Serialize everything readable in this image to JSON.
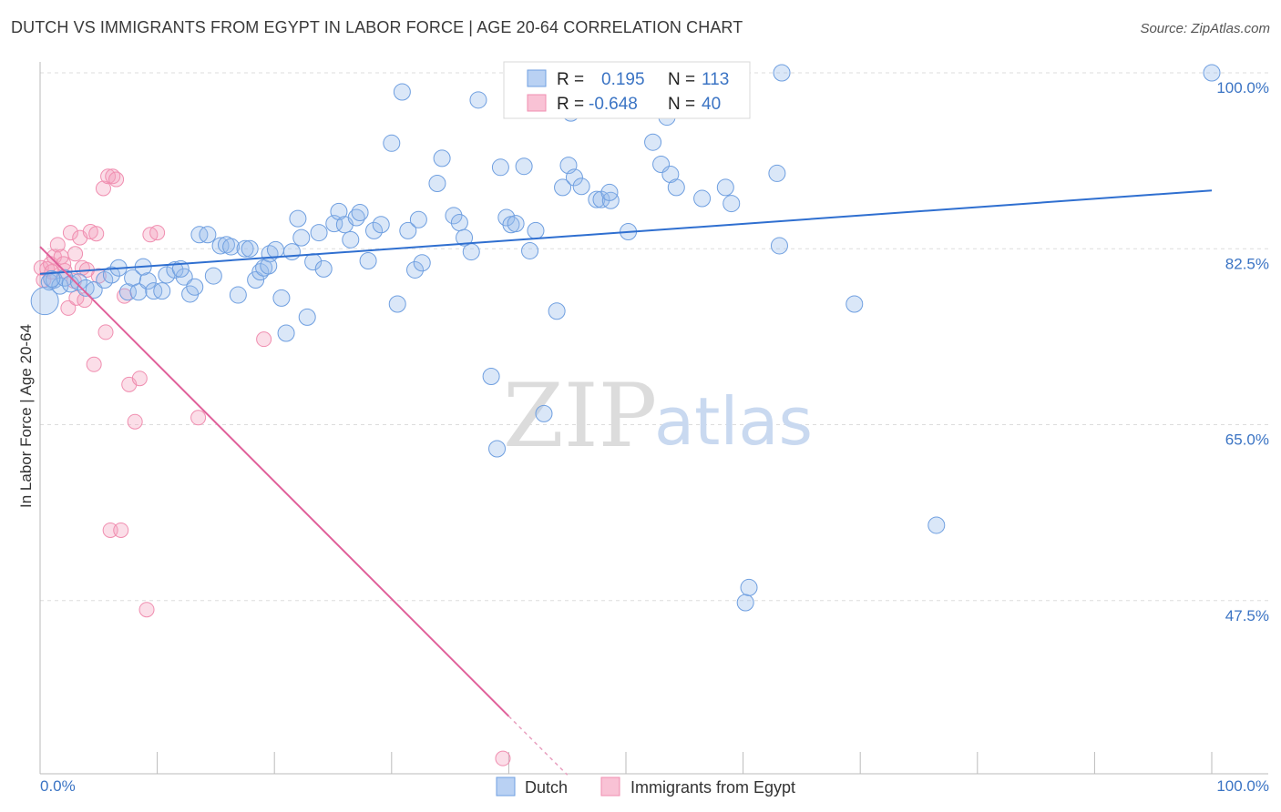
{
  "title": "DUTCH VS IMMIGRANTS FROM EGYPT IN LABOR FORCE | AGE 20-64 CORRELATION CHART",
  "source": "Source: ZipAtlas.com",
  "watermark": {
    "zip": "ZIP",
    "atlas": "atlas"
  },
  "colors": {
    "dutch": "#6f9fe0",
    "egypt": "#f08eb0",
    "dutch_line": "#2f6fd0",
    "egypt_line": "#e0609a",
    "tick": "#3b74c4"
  },
  "legend": {
    "r_label": "R =",
    "n_label": "N =",
    "dutch_r": "0.195",
    "dutch_n": "113",
    "egypt_r": "-0.648",
    "egypt_n": "40"
  },
  "chart_data": {
    "type": "scatter",
    "title": "DUTCH VS IMMIGRANTS FROM EGYPT IN LABOR FORCE | AGE 20-64 CORRELATION CHART",
    "xlabel": "",
    "ylabel": "In Labor Force | Age 20-64",
    "xlim": [
      0,
      100
    ],
    "ylim": [
      31,
      100
    ],
    "x_tick_labels": [
      "0.0%",
      "100.0%"
    ],
    "y_ticks": [
      47.5,
      65.0,
      82.5,
      100.0
    ],
    "y_tick_labels": [
      "47.5%",
      "65.0%",
      "82.5%",
      "100.0%"
    ],
    "grid": true,
    "legend_position": "top-center",
    "series": [
      {
        "name": "Dutch",
        "trend": [
          [
            0,
            80.0
          ],
          [
            100,
            88.3
          ]
        ],
        "points": [
          [
            0.4,
            77.3
          ],
          [
            0.8,
            79.2
          ],
          [
            1.2,
            79.4
          ],
          [
            1.7,
            78.8
          ],
          [
            2.1,
            79.6
          ],
          [
            2.6,
            79.0
          ],
          [
            3.3,
            79.2
          ],
          [
            3.9,
            78.6
          ],
          [
            4.6,
            78.4
          ],
          [
            5.5,
            79.4
          ],
          [
            6.1,
            79.9
          ],
          [
            6.7,
            80.6
          ],
          [
            7.5,
            78.2
          ],
          [
            7.9,
            79.6
          ],
          [
            8.4,
            78.2
          ],
          [
            9.2,
            79.3
          ],
          [
            9.7,
            78.3
          ],
          [
            10.4,
            78.3
          ],
          [
            10.8,
            79.9
          ],
          [
            11.5,
            80.4
          ],
          [
            12.3,
            79.7
          ],
          [
            12.8,
            78.0
          ],
          [
            13.2,
            78.7
          ],
          [
            13.6,
            83.9
          ],
          [
            14.3,
            83.9
          ],
          [
            14.8,
            79.8
          ],
          [
            15.4,
            82.8
          ],
          [
            15.9,
            82.9
          ],
          [
            16.3,
            82.7
          ],
          [
            16.9,
            77.9
          ],
          [
            17.5,
            82.5
          ],
          [
            17.9,
            82.5
          ],
          [
            18.4,
            79.4
          ],
          [
            18.8,
            80.2
          ],
          [
            19.1,
            80.6
          ],
          [
            19.6,
            82.0
          ],
          [
            20.1,
            82.4
          ],
          [
            20.6,
            77.6
          ],
          [
            21.0,
            74.1
          ],
          [
            22.0,
            85.5
          ],
          [
            22.3,
            83.6
          ],
          [
            22.8,
            75.7
          ],
          [
            23.3,
            81.2
          ],
          [
            23.8,
            84.1
          ],
          [
            24.2,
            80.5
          ],
          [
            25.1,
            85.0
          ],
          [
            25.5,
            86.2
          ],
          [
            26.0,
            84.9
          ],
          [
            26.5,
            83.4
          ],
          [
            27.0,
            85.6
          ],
          [
            27.3,
            86.1
          ],
          [
            28.0,
            81.3
          ],
          [
            28.5,
            84.3
          ],
          [
            29.1,
            84.9
          ],
          [
            30.0,
            93.0
          ],
          [
            30.5,
            77.0
          ],
          [
            30.9,
            98.1
          ],
          [
            31.4,
            84.3
          ],
          [
            32.0,
            80.4
          ],
          [
            32.6,
            81.1
          ],
          [
            32.3,
            85.4
          ],
          [
            33.9,
            89.0
          ],
          [
            34.3,
            91.5
          ],
          [
            35.3,
            85.8
          ],
          [
            35.8,
            85.1
          ],
          [
            36.2,
            83.6
          ],
          [
            36.8,
            82.2
          ],
          [
            37.4,
            97.3
          ],
          [
            38.5,
            69.8
          ],
          [
            39.0,
            62.6
          ],
          [
            39.3,
            90.6
          ],
          [
            39.8,
            85.6
          ],
          [
            40.2,
            84.9
          ],
          [
            40.6,
            85.0
          ],
          [
            41.3,
            90.7
          ],
          [
            41.8,
            82.3
          ],
          [
            42.3,
            84.3
          ],
          [
            43.0,
            66.1
          ],
          [
            44.1,
            76.3
          ],
          [
            44.6,
            88.6
          ],
          [
            45.1,
            90.8
          ],
          [
            45.3,
            96.0
          ],
          [
            45.6,
            89.6
          ],
          [
            46.2,
            88.7
          ],
          [
            47.5,
            87.4
          ],
          [
            47.9,
            87.4
          ],
          [
            48.7,
            87.3
          ],
          [
            48.6,
            88.1
          ],
          [
            50.2,
            84.2
          ],
          [
            52.3,
            93.1
          ],
          [
            53.0,
            90.9
          ],
          [
            53.5,
            95.6
          ],
          [
            53.8,
            89.9
          ],
          [
            54.3,
            88.6
          ],
          [
            56.5,
            87.5
          ],
          [
            58.5,
            88.6
          ],
          [
            59.0,
            87.0
          ],
          [
            60.2,
            47.3
          ],
          [
            60.5,
            48.8
          ],
          [
            62.9,
            90.0
          ],
          [
            63.1,
            82.8
          ],
          [
            63.3,
            100.0
          ],
          [
            69.5,
            77.0
          ],
          [
            76.5,
            55.0
          ],
          [
            100.0,
            100.0
          ],
          [
            1.0,
            79.5
          ],
          [
            8.8,
            80.7
          ],
          [
            12.0,
            80.5
          ],
          [
            19.5,
            80.8
          ],
          [
            21.5,
            82.2
          ]
        ]
      },
      {
        "name": "Immigrants from Egypt",
        "trend": [
          [
            0,
            82.7
          ],
          [
            40,
            36.0
          ]
        ],
        "points": [
          [
            0.1,
            80.6
          ],
          [
            0.3,
            79.4
          ],
          [
            0.6,
            80.5
          ],
          [
            0.9,
            81.0
          ],
          [
            1.2,
            81.7
          ],
          [
            1.5,
            82.9
          ],
          [
            1.8,
            81.7
          ],
          [
            2.1,
            80.3
          ],
          [
            2.4,
            76.6
          ],
          [
            2.6,
            84.1
          ],
          [
            2.9,
            79.3
          ],
          [
            3.1,
            77.6
          ],
          [
            3.4,
            83.6
          ],
          [
            3.6,
            80.6
          ],
          [
            3.8,
            77.4
          ],
          [
            4.3,
            84.2
          ],
          [
            4.6,
            71.0
          ],
          [
            4.8,
            84.0
          ],
          [
            5.0,
            79.8
          ],
          [
            5.4,
            88.5
          ],
          [
            5.6,
            74.2
          ],
          [
            5.8,
            89.7
          ],
          [
            6.0,
            54.5
          ],
          [
            6.2,
            89.7
          ],
          [
            6.5,
            89.4
          ],
          [
            6.9,
            54.5
          ],
          [
            7.2,
            77.8
          ],
          [
            7.6,
            69.0
          ],
          [
            8.1,
            65.3
          ],
          [
            8.5,
            69.6
          ],
          [
            9.1,
            46.6
          ],
          [
            9.4,
            83.9
          ],
          [
            10.0,
            84.1
          ],
          [
            13.5,
            65.7
          ],
          [
            19.1,
            73.5
          ],
          [
            39.5,
            31.8
          ],
          [
            1.0,
            80.2
          ],
          [
            2.0,
            81.0
          ],
          [
            3.0,
            82.0
          ],
          [
            4.0,
            80.4
          ]
        ]
      }
    ]
  },
  "bottom_legend": {
    "dutch": "Dutch",
    "egypt": "Immigrants from Egypt"
  }
}
